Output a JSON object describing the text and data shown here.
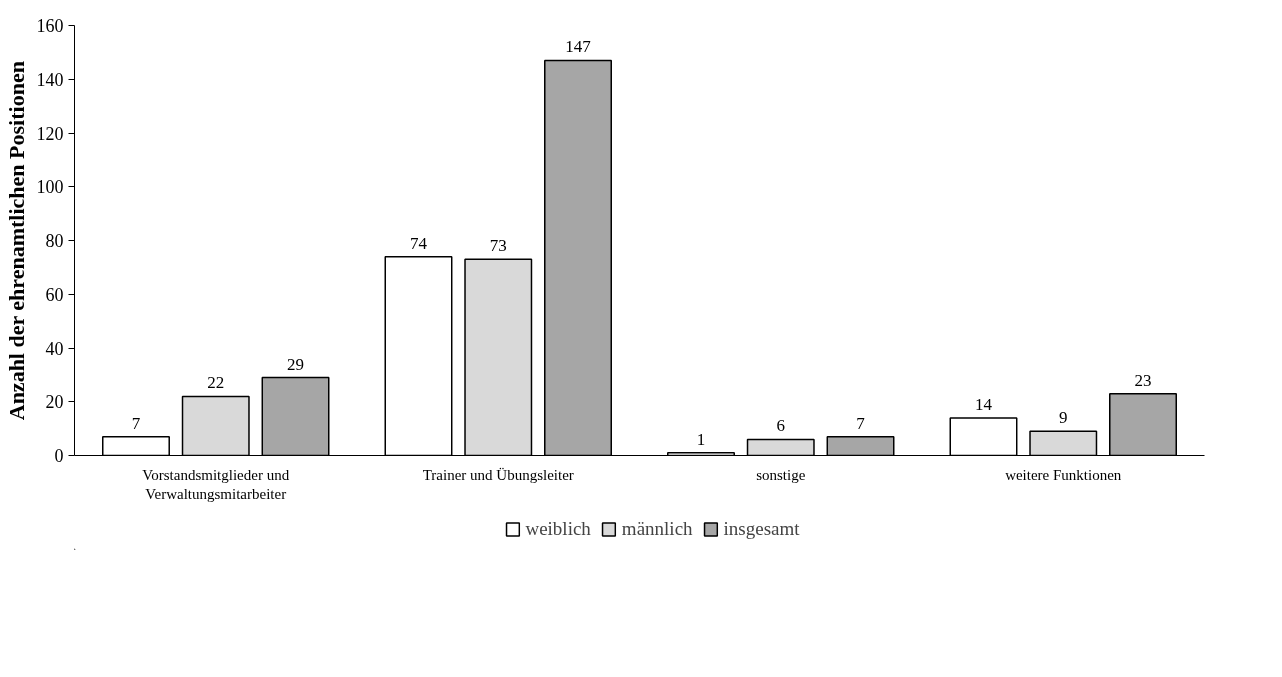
{
  "chart_data": {
    "type": "bar",
    "ylabel": "Anzahl der ehrenamtlichen Positionen",
    "categories": [
      "Vorstandsmitglieder und Verwaltungsmitarbeiter",
      "Trainer und Übungsleiter",
      "sonstige",
      "weitere Funktionen"
    ],
    "series": [
      {
        "name": "weiblich",
        "color": "#ffffff",
        "values": [
          7,
          74,
          1,
          14
        ]
      },
      {
        "name": "männlich",
        "color": "#d9d9d9",
        "values": [
          22,
          73,
          6,
          9
        ]
      },
      {
        "name": "insgesamt",
        "color": "#a6a6a6",
        "values": [
          29,
          147,
          7,
          23
        ]
      }
    ],
    "ylim": [
      0,
      160
    ],
    "yticks": [
      0,
      20,
      40,
      60,
      80,
      100,
      120,
      140,
      160
    ],
    "grid": false,
    "legend": "bottom",
    "data_labels": true
  }
}
